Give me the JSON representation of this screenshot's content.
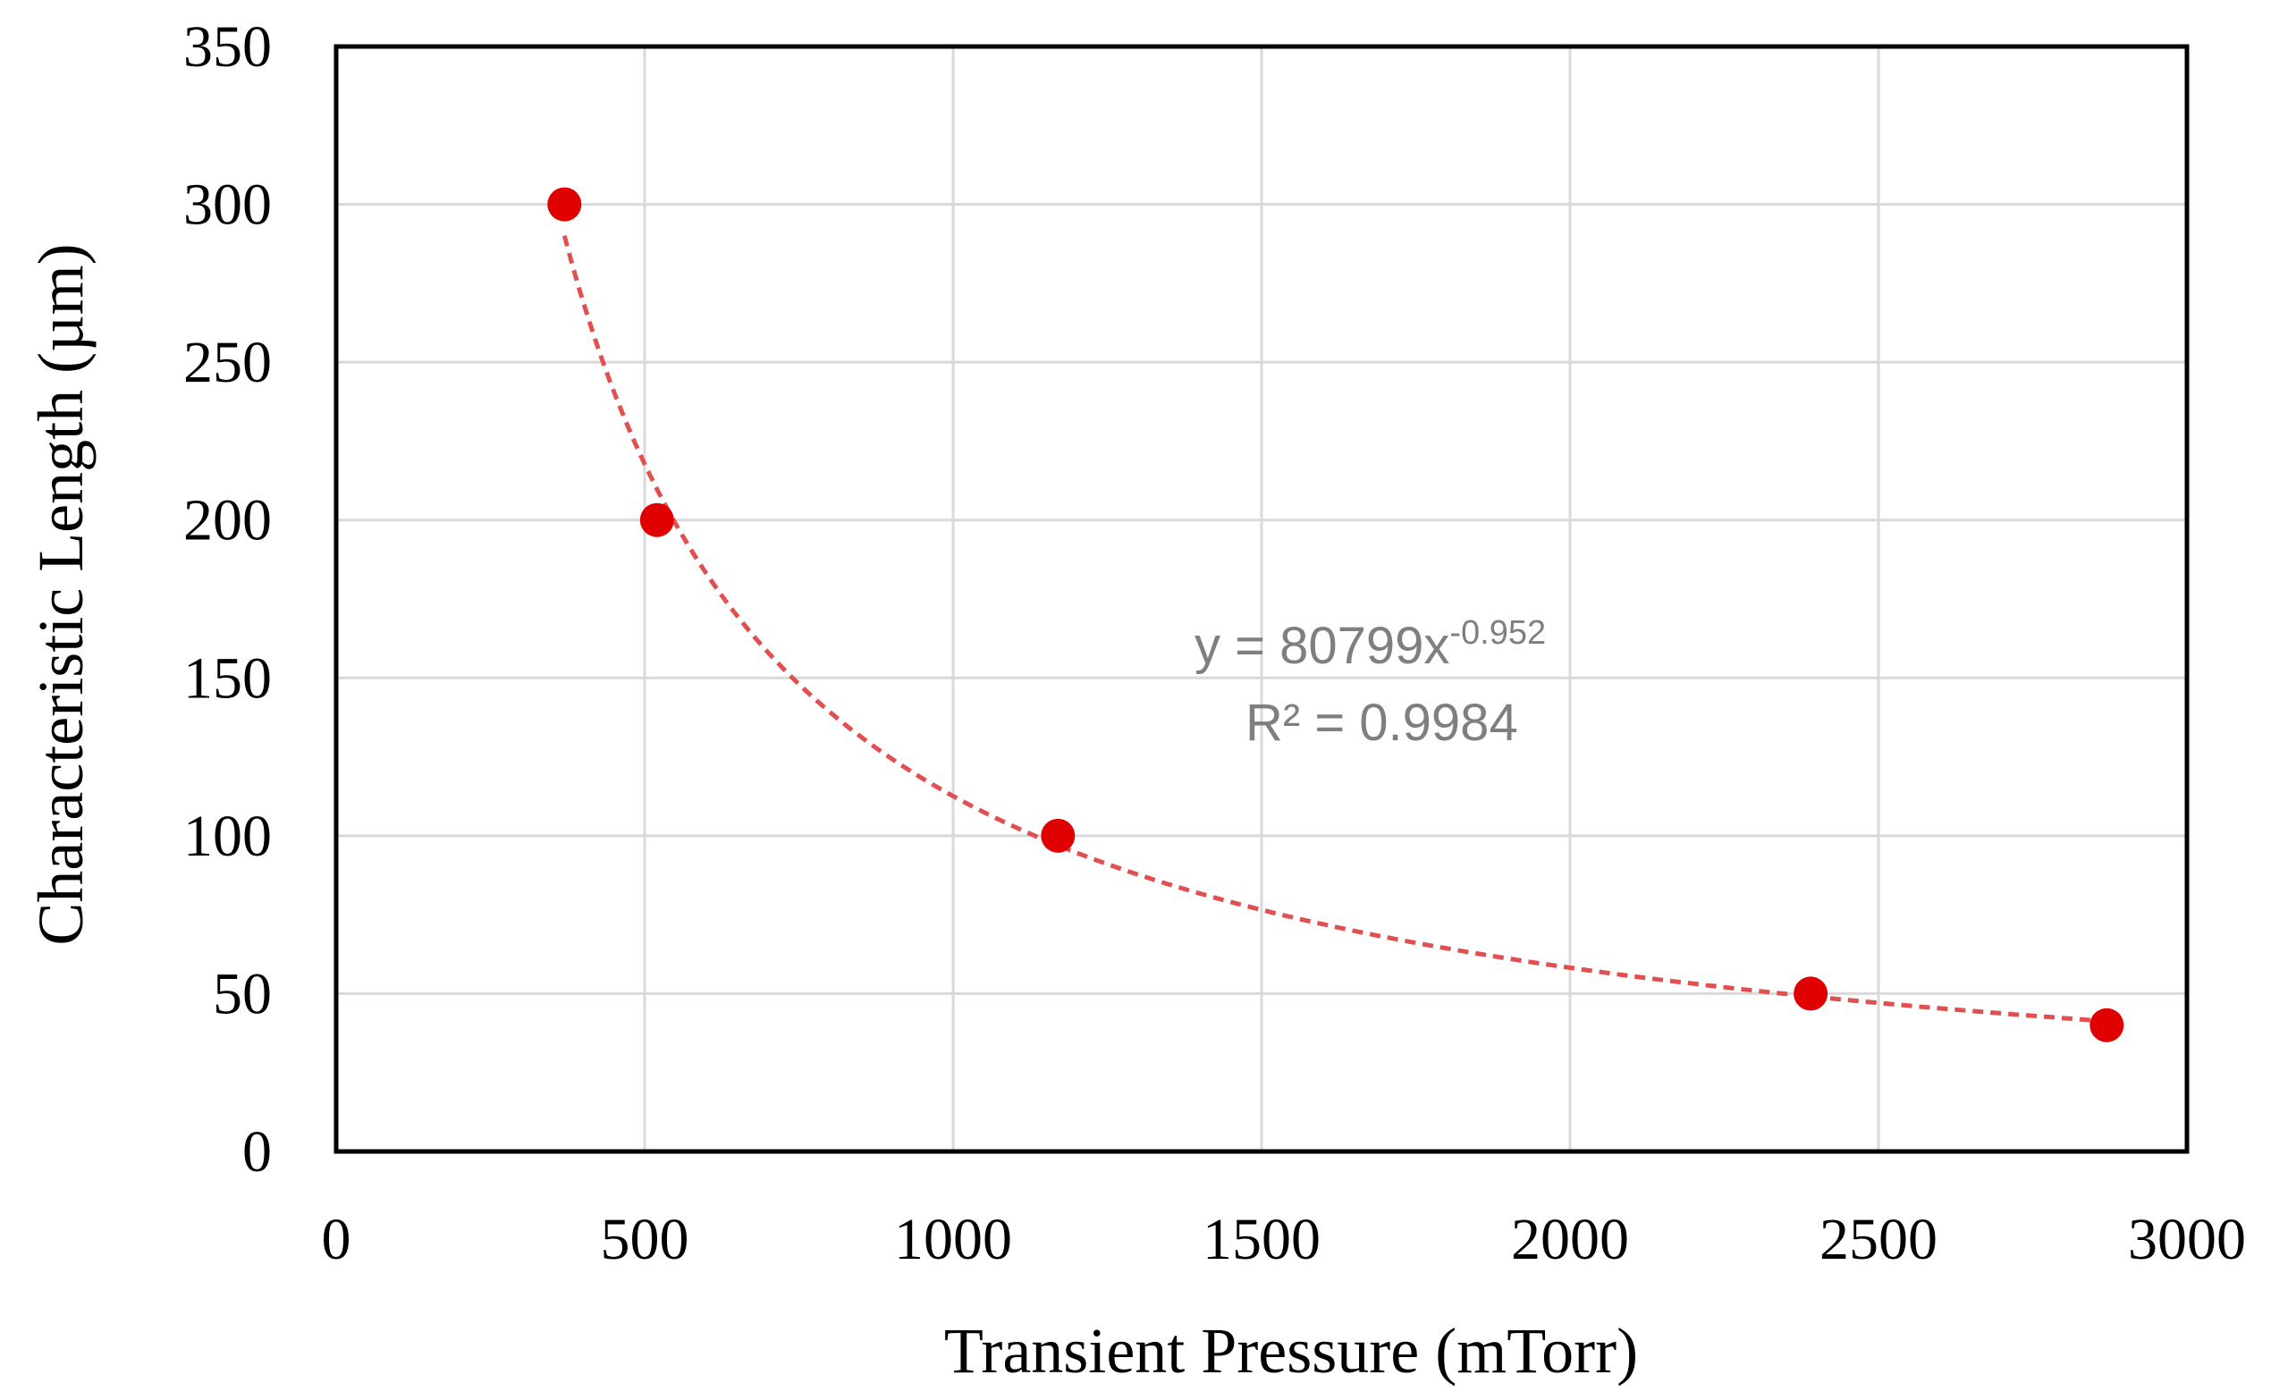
{
  "chart_data": {
    "type": "scatter",
    "title": "",
    "xlabel": "Transient Pressure (mTorr)",
    "ylabel": "Characteristic Length (µm)",
    "xlim": [
      0,
      3000
    ],
    "ylim": [
      0,
      350
    ],
    "xticks": [
      0,
      500,
      1000,
      1500,
      2000,
      2500,
      3000
    ],
    "yticks": [
      0,
      50,
      100,
      150,
      200,
      250,
      300,
      350
    ],
    "grid": true,
    "legend": "none",
    "series": [
      {
        "name": "Characteristic Length",
        "x": [
          370,
          520,
          1170,
          2390,
          2870
        ],
        "y": [
          300,
          200,
          100,
          50,
          40
        ],
        "marker_color": "#e00000"
      }
    ],
    "trendline": {
      "type": "power",
      "coefficient": 80799,
      "exponent": -0.952,
      "x_range": [
        370,
        2870
      ],
      "color": "#e05050",
      "style": "dashed",
      "equation_text": "y = 80799x",
      "equation_exponent_text": "-0.952",
      "r2_text": "R² = 0.9984"
    }
  }
}
